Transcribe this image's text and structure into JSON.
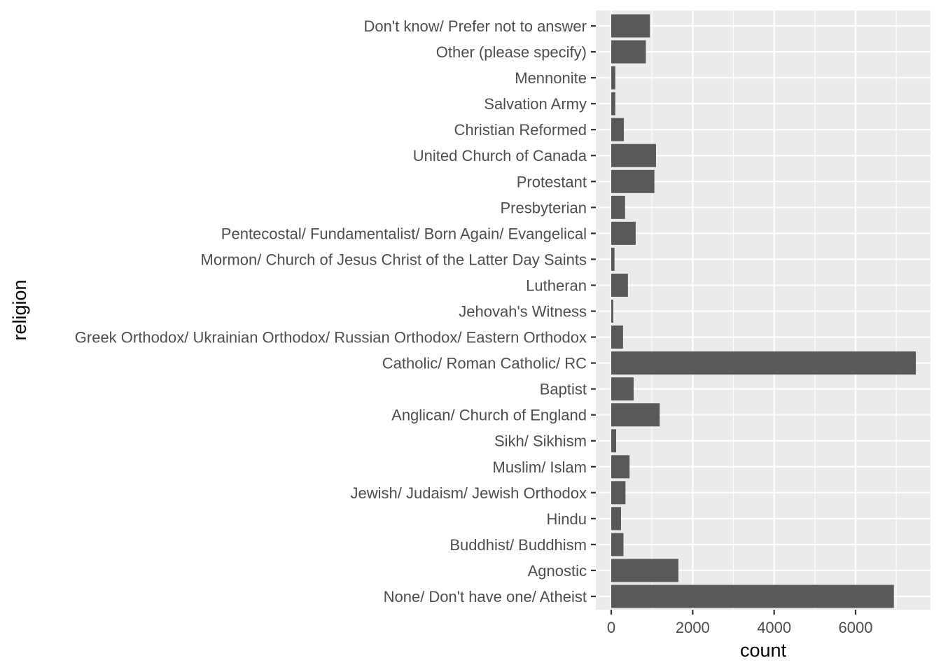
{
  "chart_data": {
    "type": "bar",
    "orientation": "horizontal",
    "xlabel": "count",
    "ylabel": "religion",
    "xlim": [
      -380,
      7800
    ],
    "xticks": [
      0,
      2000,
      4000,
      6000
    ],
    "xtick_labels": [
      "0",
      "2000",
      "4000",
      "6000"
    ],
    "grid": true,
    "categories": [
      "Don't know/ Prefer not to answer",
      "Other (please specify)",
      "Mennonite",
      "Salvation Army",
      "Christian Reformed",
      "United Church of Canada",
      "Protestant",
      "Presbyterian",
      "Pentecostal/ Fundamentalist/ Born Again/ Evangelical",
      "Mormon/ Church of Jesus Christ of the Latter Day Saints",
      "Lutheran",
      "Jehovah's Witness",
      "Greek Orthodox/ Ukrainian Orthodox/ Russian Orthodox/ Eastern Orthodox",
      "Catholic/ Roman Catholic/ RC",
      "Baptist",
      "Anglican/ Church of England",
      "Sikh/ Sikhism",
      "Muslim/ Islam",
      "Jewish/ Judaism/ Jewish Orthodox",
      "Hindu",
      "Buddhist/ Buddhism",
      "Agnostic",
      "None/ Don't have one/ Atheist"
    ],
    "values": [
      950,
      850,
      100,
      100,
      310,
      1100,
      1060,
      340,
      600,
      80,
      410,
      50,
      290,
      7480,
      550,
      1190,
      120,
      450,
      350,
      240,
      300,
      1650,
      6940
    ]
  },
  "colors": {
    "panel_background": "#ebebeb",
    "grid_major": "#ffffff",
    "bar_fill": "#595959",
    "tick_text": "#4d4d4d",
    "tick_mark": "#333333",
    "title_text": "#000000"
  }
}
